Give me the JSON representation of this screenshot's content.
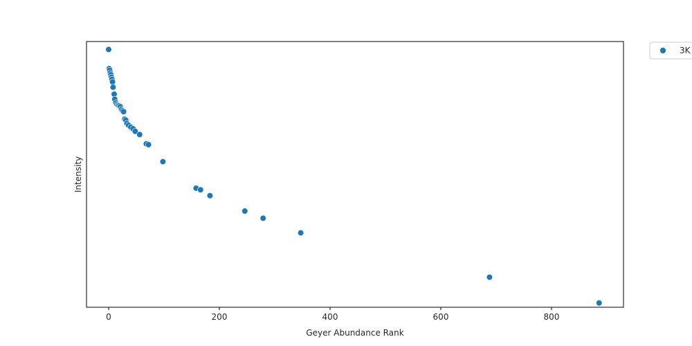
{
  "chart_data": {
    "type": "scatter",
    "title": "",
    "xlabel": "Geyer Abundance Rank",
    "ylabel": "Intensity",
    "xlim": [
      -40,
      930
    ],
    "ylim": [
      0,
      1
    ],
    "x_ticks": [
      0,
      200,
      400,
      600,
      800
    ],
    "x_tick_labels": [
      "0",
      "200",
      "400",
      "600",
      "800"
    ],
    "y_ticks_visible": false,
    "grid": false,
    "legend_position": "outside-top-right",
    "series": [
      {
        "name": "3K",
        "color": "#1f77b4",
        "points": [
          {
            "x": 0,
            "y": 0.97
          },
          {
            "x": 1,
            "y": 0.898
          },
          {
            "x": 2,
            "y": 0.892
          },
          {
            "x": 3,
            "y": 0.882
          },
          {
            "x": 4,
            "y": 0.875
          },
          {
            "x": 5,
            "y": 0.866
          },
          {
            "x": 6,
            "y": 0.858
          },
          {
            "x": 7,
            "y": 0.848
          },
          {
            "x": 8,
            "y": 0.828
          },
          {
            "x": 10,
            "y": 0.802
          },
          {
            "x": 11,
            "y": 0.783
          },
          {
            "x": 13,
            "y": 0.77
          },
          {
            "x": 15,
            "y": 0.763
          },
          {
            "x": 17,
            "y": 0.76
          },
          {
            "x": 19,
            "y": 0.758
          },
          {
            "x": 21,
            "y": 0.755
          },
          {
            "x": 23,
            "y": 0.745
          },
          {
            "x": 25,
            "y": 0.74
          },
          {
            "x": 27,
            "y": 0.736
          },
          {
            "x": 29,
            "y": 0.708
          },
          {
            "x": 31,
            "y": 0.704
          },
          {
            "x": 33,
            "y": 0.692
          },
          {
            "x": 36,
            "y": 0.685
          },
          {
            "x": 40,
            "y": 0.678
          },
          {
            "x": 44,
            "y": 0.672
          },
          {
            "x": 48,
            "y": 0.662
          },
          {
            "x": 56,
            "y": 0.65
          },
          {
            "x": 68,
            "y": 0.615
          },
          {
            "x": 72,
            "y": 0.612
          },
          {
            "x": 98,
            "y": 0.548
          },
          {
            "x": 158,
            "y": 0.448
          },
          {
            "x": 166,
            "y": 0.442
          },
          {
            "x": 183,
            "y": 0.42
          },
          {
            "x": 246,
            "y": 0.362
          },
          {
            "x": 279,
            "y": 0.335
          },
          {
            "x": 347,
            "y": 0.28
          },
          {
            "x": 688,
            "y": 0.113
          },
          {
            "x": 886,
            "y": 0.016
          }
        ]
      }
    ]
  }
}
